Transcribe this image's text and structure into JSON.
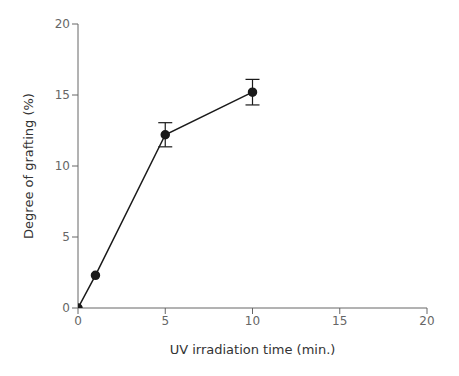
{
  "chart_data": {
    "type": "line",
    "x": [
      0,
      1,
      5,
      10
    ],
    "values": [
      0,
      2.3,
      12.2,
      15.2
    ],
    "yerr": [
      0,
      0,
      0.85,
      0.9
    ],
    "xlim": [
      0,
      20
    ],
    "ylim": [
      0,
      20
    ],
    "xticks": [
      0,
      5,
      10,
      15,
      20
    ],
    "yticks": [
      0,
      5,
      10,
      15,
      20
    ],
    "xlabel": "UV irradiation time (min.)",
    "ylabel": "Degree of grafting (%)",
    "color": "#1a1a1a",
    "marker": "circle",
    "grid": false
  }
}
